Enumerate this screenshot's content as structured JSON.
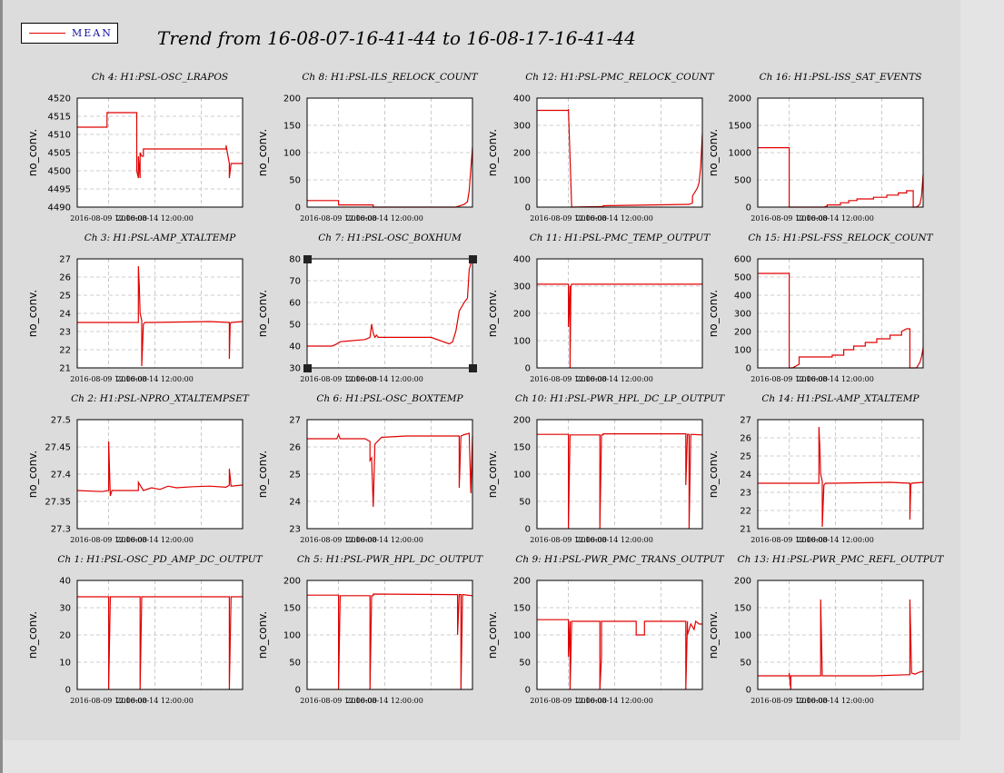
{
  "legend": {
    "label": "MEAN",
    "line_color": "#e00000"
  },
  "page_title": "Trend from 16-08-07-16-41-44 to 16-08-17-16-41-44",
  "chart_data": [
    {
      "type": "line",
      "title": "Ch 4: H1:PSL-OSC_LRAPOS",
      "ylabel": "no_conv.",
      "ylim": [
        4490,
        4520
      ],
      "yticks": [
        "4520",
        "4515",
        "4510",
        "4505",
        "4500",
        "4495",
        "4490"
      ],
      "xtick_labels": [
        "2016-08-09 12:00:00",
        "2016-08-14 12:00:00"
      ],
      "series": [
        {
          "x": [
            0,
            0.18,
            0.18,
            0.36,
            0.36,
            0.37,
            0.37,
            0.38,
            0.38,
            0.39,
            0.4,
            0.4,
            0.42,
            0.9,
            0.9,
            0.92,
            0.92,
            0.93,
            0.94,
            1
          ],
          "y": [
            4512,
            4512,
            4516,
            4516,
            4500,
            4498,
            4504,
            4498,
            4505,
            4504,
            4504,
            4506,
            4506,
            4506,
            4507,
            4502,
            4498,
            4502,
            4502,
            4502
          ]
        }
      ]
    },
    {
      "type": "line",
      "title": "Ch 8: H1:PSL-ILS_RELOCK_COUNT",
      "ylabel": "no_conv.",
      "ylim": [
        0,
        200
      ],
      "yticks": [
        "200",
        "150",
        "100",
        "50",
        "0"
      ],
      "xtick_labels": [
        "2016-08-09 12:00:00",
        "2016-08-14 12:00:00"
      ],
      "series": [
        {
          "x": [
            0,
            0.19,
            0.19,
            0.4,
            0.4,
            0.9,
            0.92,
            0.95,
            0.97,
            0.98,
            0.99,
            1
          ],
          "y": [
            12,
            12,
            4,
            4,
            0,
            0,
            2,
            5,
            10,
            30,
            70,
            110
          ]
        }
      ]
    },
    {
      "type": "line",
      "title": "Ch 12: H1:PSL-PMC_RELOCK_COUNT",
      "ylabel": "no_conv.",
      "ylim": [
        0,
        400
      ],
      "yticks": [
        "400",
        "300",
        "200",
        "100",
        "0"
      ],
      "xtick_labels": [
        "2016-08-09 12:00:00",
        "2016-08-14 12:00:00"
      ],
      "series": [
        {
          "x": [
            0,
            0.19,
            0.19,
            0.21,
            0.21,
            0.4,
            0.4,
            0.92,
            0.92,
            0.94,
            0.94,
            0.96,
            0.97,
            0.98,
            0.99,
            1
          ],
          "y": [
            355,
            355,
            360,
            0,
            0,
            2,
            5,
            10,
            10,
            15,
            40,
            60,
            70,
            90,
            150,
            270
          ]
        }
      ]
    },
    {
      "type": "line",
      "title": "Ch 16: H1:PSL-ISS_SAT_EVENTS",
      "ylabel": "no_conv.",
      "ylim": [
        0,
        2000
      ],
      "yticks": [
        "2000",
        "1500",
        "1000",
        "500",
        "0"
      ],
      "xtick_labels": [
        "2016-08-09 12:00:00",
        "2016-08-14 12:00:00"
      ],
      "series": [
        {
          "x": [
            0,
            0.19,
            0.19,
            0.4,
            0.42,
            0.42,
            0.5,
            0.5,
            0.55,
            0.55,
            0.6,
            0.6,
            0.7,
            0.7,
            0.78,
            0.78,
            0.85,
            0.85,
            0.9,
            0.9,
            0.94,
            0.94,
            0.96,
            0.98,
            0.99,
            1
          ],
          "y": [
            1090,
            1090,
            0,
            0,
            20,
            40,
            40,
            80,
            80,
            120,
            120,
            150,
            150,
            180,
            180,
            220,
            220,
            260,
            260,
            300,
            300,
            0,
            0,
            50,
            200,
            600
          ]
        }
      ]
    },
    {
      "type": "line",
      "title": "Ch 3: H1:PSL-AMP_XTALTEMP",
      "ylabel": "no_conv.",
      "ylim": [
        21,
        27
      ],
      "yticks": [
        "27",
        "26",
        "25",
        "24",
        "23",
        "22",
        "21"
      ],
      "xtick_labels": [
        "2016-08-09 12:00:00",
        "2016-08-14 12:00:00"
      ],
      "series": [
        {
          "x": [
            0,
            0.37,
            0.37,
            0.375,
            0.38,
            0.39,
            0.39,
            0.4,
            0.41,
            0.45,
            0.8,
            0.92,
            0.92,
            0.925,
            0.93,
            1
          ],
          "y": [
            23.5,
            23.5,
            26.6,
            25.5,
            24,
            23.6,
            21.1,
            23.4,
            23.5,
            23.5,
            23.55,
            23.5,
            21.5,
            23.4,
            23.5,
            23.55
          ]
        }
      ]
    },
    {
      "type": "line",
      "title": "Ch 7: H1:PSL-OSC_BOXHUM",
      "ylabel": "no_conv.",
      "ylim": [
        30,
        80
      ],
      "yticks": [
        "80",
        "70",
        "60",
        "50",
        "40",
        "30"
      ],
      "xtick_labels": [
        "2016-08-09 12:00:00",
        "2016-08-14 12:00:00"
      ],
      "series": [
        {
          "x": [
            0,
            0.15,
            0.18,
            0.2,
            0.35,
            0.38,
            0.39,
            0.4,
            0.41,
            0.42,
            0.43,
            0.6,
            0.75,
            0.86,
            0.88,
            0.9,
            0.92,
            0.95,
            0.97,
            0.98,
            0.99,
            1
          ],
          "y": [
            40,
            40,
            41,
            42,
            43,
            44,
            50,
            46,
            44,
            45,
            44,
            44,
            44,
            41,
            42,
            47,
            56,
            60,
            62,
            75,
            78,
            80
          ]
        }
      ]
    },
    {
      "type": "line",
      "title": "Ch 11: H1:PSL-PMC_TEMP_OUTPUT",
      "ylabel": "no_conv.",
      "ylim": [
        0,
        400
      ],
      "yticks": [
        "400",
        "300",
        "200",
        "100",
        "0"
      ],
      "xtick_labels": [
        "2016-08-09 12:00:00",
        "2016-08-14 12:00:00"
      ],
      "series": [
        {
          "x": [
            0,
            0.19,
            0.19,
            0.2,
            0.2,
            0.205,
            0.21,
            1
          ],
          "y": [
            307,
            307,
            150,
            300,
            0,
            300,
            307,
            307
          ]
        }
      ]
    },
    {
      "type": "line",
      "title": "Ch 15: H1:PSL-FSS_RELOCK_COUNT",
      "ylabel": "no_conv.",
      "ylim": [
        0,
        600
      ],
      "yticks": [
        "600",
        "500",
        "400",
        "300",
        "200",
        "100",
        "0"
      ],
      "xtick_labels": [
        "2016-08-09 12:00:00",
        "2016-08-14 12:00:00"
      ],
      "series": [
        {
          "x": [
            0,
            0.19,
            0.19,
            0.21,
            0.25,
            0.25,
            0.45,
            0.45,
            0.52,
            0.52,
            0.58,
            0.58,
            0.65,
            0.65,
            0.72,
            0.72,
            0.8,
            0.8,
            0.87,
            0.87,
            0.9,
            0.92,
            0.92,
            0.96,
            0.98,
            0.99,
            1
          ],
          "y": [
            520,
            520,
            0,
            0,
            20,
            60,
            60,
            70,
            70,
            100,
            100,
            120,
            120,
            140,
            140,
            160,
            160,
            180,
            180,
            200,
            215,
            215,
            0,
            0,
            30,
            60,
            110
          ]
        }
      ]
    },
    {
      "type": "line",
      "title": "Ch 2: H1:PSL-NPRO_XTALTEMPSET",
      "ylabel": "no_conv.",
      "ylim": [
        27.3,
        27.5
      ],
      "yticks": [
        "27.5",
        "27.45",
        "27.4",
        "27.35",
        "27.3"
      ],
      "xtick_labels": [
        "2016-08-09 12:00:00",
        "2016-08-14 12:00:00"
      ],
      "series": [
        {
          "x": [
            0,
            0.15,
            0.19,
            0.19,
            0.2,
            0.21,
            0.3,
            0.37,
            0.37,
            0.39,
            0.4,
            0.45,
            0.5,
            0.55,
            0.6,
            0.7,
            0.8,
            0.9,
            0.92,
            0.92,
            0.93,
            1
          ],
          "y": [
            27.37,
            27.368,
            27.37,
            27.46,
            27.36,
            27.37,
            27.37,
            27.37,
            27.385,
            27.375,
            27.37,
            27.375,
            27.372,
            27.378,
            27.375,
            27.377,
            27.378,
            27.376,
            27.38,
            27.41,
            27.378,
            27.38
          ]
        }
      ]
    },
    {
      "type": "line",
      "title": "Ch 6: H1:PSL-OSC_BOXTEMP",
      "ylabel": "no_conv.",
      "ylim": [
        23,
        27
      ],
      "yticks": [
        "27",
        "26",
        "25",
        "24",
        "23"
      ],
      "xtick_labels": [
        "2016-08-09 12:00:00",
        "2016-08-14 12:00:00"
      ],
      "series": [
        {
          "x": [
            0,
            0.18,
            0.19,
            0.2,
            0.35,
            0.38,
            0.38,
            0.39,
            0.4,
            0.41,
            0.45,
            0.6,
            0.8,
            0.9,
            0.92,
            0.92,
            0.93,
            0.95,
            0.98,
            0.99,
            1
          ],
          "y": [
            26.3,
            26.3,
            26.45,
            26.3,
            26.3,
            26.2,
            25.5,
            25.6,
            23.8,
            26.1,
            26.35,
            26.4,
            26.4,
            26.4,
            26.4,
            24.5,
            26.4,
            26.45,
            26.5,
            24.3,
            26.4
          ]
        }
      ]
    },
    {
      "type": "line",
      "title": "Ch 10: H1:PSL-PWR_HPL_DC_LP_OUTPUT",
      "ylabel": "no_conv.",
      "ylim": [
        0,
        200
      ],
      "yticks": [
        "200",
        "150",
        "100",
        "50",
        "0"
      ],
      "xtick_labels": [
        "2016-08-09 12:00:00",
        "2016-08-14 12:00:00"
      ],
      "series": [
        {
          "x": [
            0,
            0.19,
            0.19,
            0.2,
            0.2,
            0.21,
            0.38,
            0.38,
            0.39,
            0.4,
            0.4,
            0.41,
            0.9,
            0.9,
            0.91,
            0.92,
            0.92,
            0.93,
            1
          ],
          "y": [
            173,
            173,
            0,
            173,
            172,
            172,
            172,
            0,
            172,
            172,
            174,
            174,
            174,
            80,
            173,
            173,
            0,
            173,
            172
          ]
        }
      ]
    },
    {
      "type": "line",
      "title": "Ch 14: H1:PSL-AMP_XTALTEMP",
      "ylabel": "no_conv.",
      "ylim": [
        21,
        27
      ],
      "yticks": [
        "27",
        "26",
        "25",
        "24",
        "23",
        "22",
        "21"
      ],
      "xtick_labels": [
        "2016-08-09 12:00:00",
        "2016-08-14 12:00:00"
      ],
      "series": [
        {
          "x": [
            0,
            0.37,
            0.37,
            0.375,
            0.38,
            0.39,
            0.39,
            0.4,
            0.41,
            0.45,
            0.8,
            0.92,
            0.92,
            0.925,
            0.93,
            1
          ],
          "y": [
            23.5,
            23.5,
            26.6,
            25.5,
            24,
            23.6,
            21.1,
            23.4,
            23.5,
            23.5,
            23.55,
            23.5,
            21.5,
            23.4,
            23.5,
            23.55
          ]
        }
      ]
    },
    {
      "type": "line",
      "title": "Ch 1: H1:PSL-OSC_PD_AMP_DC_OUTPUT",
      "ylabel": "no_conv.",
      "ylim": [
        0,
        40
      ],
      "yticks": [
        "40",
        "30",
        "20",
        "10",
        "0"
      ],
      "xtick_labels": [
        "2016-08-09 12:00:00",
        "2016-08-14 12:00:00"
      ],
      "series": [
        {
          "x": [
            0,
            0.19,
            0.19,
            0.2,
            0.2,
            0.38,
            0.38,
            0.39,
            0.39,
            0.92,
            0.92,
            0.93,
            0.93,
            1
          ],
          "y": [
            34,
            34,
            0,
            34,
            34,
            34,
            0,
            34,
            34,
            34,
            0,
            34,
            34,
            34
          ]
        }
      ]
    },
    {
      "type": "line",
      "title": "Ch 5: H1:PSL-PWR_HPL_DC_OUTPUT",
      "ylabel": "no_conv.",
      "ylim": [
        0,
        200
      ],
      "yticks": [
        "200",
        "150",
        "100",
        "50",
        "0"
      ],
      "xtick_labels": [
        "2016-08-09 12:00:00",
        "2016-08-14 12:00:00"
      ],
      "series": [
        {
          "x": [
            0,
            0.19,
            0.19,
            0.2,
            0.2,
            0.38,
            0.38,
            0.39,
            0.4,
            0.4,
            0.9,
            0.91,
            0.91,
            0.92,
            0.93,
            0.93,
            0.94,
            1
          ],
          "y": [
            173,
            173,
            0,
            173,
            172,
            172,
            0,
            172,
            172,
            175,
            174,
            174,
            100,
            174,
            174,
            0,
            174,
            172
          ]
        }
      ]
    },
    {
      "type": "line",
      "title": "Ch 9: H1:PSL-PWR_PMC_TRANS_OUTPUT",
      "ylabel": "no_conv.",
      "ylim": [
        0,
        200
      ],
      "yticks": [
        "200",
        "150",
        "100",
        "50",
        "0"
      ],
      "xtick_labels": [
        "2016-08-09 12:00:00",
        "2016-08-14 12:00:00"
      ],
      "series": [
        {
          "x": [
            0,
            0.19,
            0.19,
            0.2,
            0.2,
            0.21,
            0.38,
            0.38,
            0.39,
            0.39,
            0.4,
            0.6,
            0.6,
            0.65,
            0.65,
            0.9,
            0.9,
            0.91,
            0.91,
            0.93,
            0.95,
            0.96,
            0.98,
            1
          ],
          "y": [
            128,
            128,
            60,
            125,
            0,
            125,
            125,
            0,
            60,
            125,
            125,
            125,
            100,
            100,
            125,
            125,
            0,
            125,
            100,
            120,
            110,
            125,
            120,
            120
          ]
        }
      ]
    },
    {
      "type": "line",
      "title": "Ch 13: H1:PSL-PWR_PMC_REFL_OUTPUT",
      "ylabel": "no_conv.",
      "ylim": [
        0,
        200
      ],
      "yticks": [
        "200",
        "150",
        "100",
        "50",
        "0"
      ],
      "xtick_labels": [
        "2016-08-09 12:00:00",
        "2016-08-14 12:00:00"
      ],
      "series": [
        {
          "x": [
            0,
            0.19,
            0.19,
            0.2,
            0.2,
            0.21,
            0.38,
            0.38,
            0.39,
            0.4,
            0.5,
            0.7,
            0.9,
            0.92,
            0.92,
            0.93,
            0.95,
            0.98,
            1
          ],
          "y": [
            25,
            25,
            30,
            0,
            25,
            25,
            25,
            165,
            25,
            25,
            25,
            25,
            27,
            27,
            165,
            30,
            28,
            32,
            33
          ]
        }
      ]
    }
  ]
}
